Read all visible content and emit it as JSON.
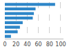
{
  "chart_data": {
    "type": "bar",
    "orientation": "horizontal",
    "categories": [
      null,
      null,
      null,
      null,
      null,
      null,
      null,
      null
    ],
    "values": [
      90,
      55,
      52,
      50,
      32,
      27,
      23,
      11
    ],
    "color": "#2e86c8",
    "xlim": [
      0,
      105
    ],
    "xticks": [
      0,
      20,
      40,
      60,
      80,
      100
    ],
    "grid": true,
    "tick_labels": "x"
  }
}
